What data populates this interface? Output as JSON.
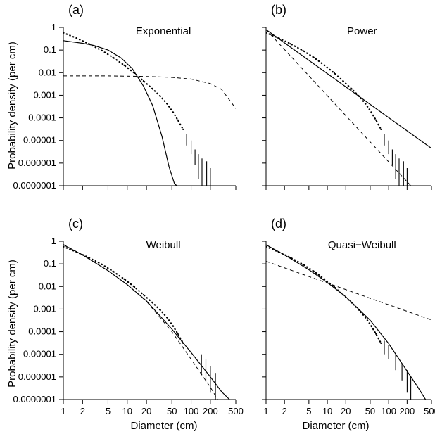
{
  "y_axis_label": "Probability density (per cm)",
  "x_axis_label": "Diameter (cm)",
  "chart_data": [
    {
      "type": "line",
      "panel": "(a)",
      "title": "Exponential",
      "xscale": "log",
      "yscale": "log",
      "xlim": [
        1,
        500
      ],
      "ylim": [
        1e-07,
        1
      ],
      "xticks": [
        1,
        2,
        5,
        10,
        20,
        50,
        100,
        200,
        500
      ],
      "xtick_labels": [
        "1",
        "2",
        "5",
        "10",
        "20",
        "50",
        "100",
        "200",
        "500"
      ],
      "yticks": [
        1e-07,
        1e-06,
        1e-05,
        0.0001,
        0.001,
        0.01,
        0.1,
        1
      ],
      "ytick_labels": [
        "0.0000001",
        "0.000001",
        "0.00001",
        "0.0001",
        "0.001",
        "0.01",
        "0.1",
        "1"
      ],
      "show_x_ticklabels": false,
      "show_y_ticklabels": true,
      "observed": {
        "x": [
          1,
          1.6,
          2.5,
          4,
          6,
          9,
          13,
          18,
          25,
          33,
          42,
          52,
          62,
          75
        ],
        "y": [
          0.58,
          0.34,
          0.19,
          0.095,
          0.047,
          0.021,
          0.0095,
          0.0043,
          0.0019,
          0.0009,
          0.00042,
          0.00018,
          8e-05,
          3.1e-05
        ]
      },
      "error_bars": [
        {
          "x": 85,
          "lo": 6e-06,
          "hi": 2e-05
        },
        {
          "x": 100,
          "lo": 2.5e-06,
          "hi": 1e-05
        },
        {
          "x": 115,
          "lo": 8e-07,
          "hi": 4e-06
        },
        {
          "x": 130,
          "lo": 2e-07,
          "hi": 2.5e-06
        },
        {
          "x": 148,
          "lo": 1e-07,
          "hi": 1.6e-06
        },
        {
          "x": 175,
          "lo": 1e-07,
          "hi": 1.2e-06
        },
        {
          "x": 200,
          "lo": 1e-07,
          "hi": 6e-07
        }
      ],
      "fit_solid": {
        "x": [
          1,
          2,
          3,
          5,
          8,
          12,
          18,
          25,
          35,
          45,
          55,
          60
        ],
        "y": [
          0.26,
          0.2,
          0.16,
          0.1,
          0.045,
          0.015,
          0.0025,
          0.00035,
          1.5e-05,
          7e-07,
          1.2e-07,
          1e-07
        ]
      },
      "fit_dashed": {
        "x": [
          1,
          5,
          20,
          50,
          100,
          200,
          300,
          500
        ],
        "y": [
          0.0072,
          0.0072,
          0.0068,
          0.0062,
          0.0052,
          0.0033,
          0.0018,
          0.00026
        ]
      }
    },
    {
      "type": "line",
      "panel": "(b)",
      "title": "Power",
      "xscale": "log",
      "yscale": "log",
      "xlim": [
        1,
        500
      ],
      "ylim": [
        1e-07,
        1
      ],
      "xticks": [
        1,
        2,
        5,
        10,
        20,
        50,
        100,
        200,
        500
      ],
      "xtick_labels": [
        "1",
        "2",
        "5",
        "10",
        "20",
        "50",
        "100",
        "200",
        "500"
      ],
      "yticks": [
        1e-07,
        1e-06,
        1e-05,
        0.0001,
        0.001,
        0.01,
        0.1,
        1
      ],
      "ytick_labels": [
        "0.0000001",
        "0.000001",
        "0.00001",
        "0.0001",
        "0.001",
        "0.01",
        "0.1",
        "1"
      ],
      "show_x_ticklabels": false,
      "show_y_ticklabels": false,
      "observed": {
        "x": [
          1,
          1.6,
          2.5,
          4,
          6,
          9,
          13,
          18,
          25,
          33,
          42,
          52,
          62,
          75
        ],
        "y": [
          0.58,
          0.34,
          0.19,
          0.095,
          0.047,
          0.021,
          0.0095,
          0.0043,
          0.0019,
          0.0009,
          0.00042,
          0.00018,
          8e-05,
          3.1e-05
        ]
      },
      "error_bars": [
        {
          "x": 85,
          "lo": 6e-06,
          "hi": 2e-05
        },
        {
          "x": 100,
          "lo": 2.5e-06,
          "hi": 1e-05
        },
        {
          "x": 115,
          "lo": 8e-07,
          "hi": 4e-06
        },
        {
          "x": 130,
          "lo": 2e-07,
          "hi": 2.5e-06
        },
        {
          "x": 148,
          "lo": 1e-07,
          "hi": 1.6e-06
        },
        {
          "x": 175,
          "lo": 1e-07,
          "hi": 1.2e-06
        },
        {
          "x": 200,
          "lo": 1e-07,
          "hi": 6e-07
        }
      ],
      "fit_solid": {
        "x": [
          1,
          500
        ],
        "y": [
          0.8,
          4.5e-06
        ]
      },
      "fit_dashed": {
        "x": [
          1,
          230
        ],
        "y": [
          0.8,
          1e-07
        ]
      }
    },
    {
      "type": "line",
      "panel": "(c)",
      "title": "Weibull",
      "xscale": "log",
      "yscale": "log",
      "xlim": [
        1,
        500
      ],
      "ylim": [
        1e-07,
        1
      ],
      "xticks": [
        1,
        2,
        5,
        10,
        20,
        50,
        100,
        200,
        500
      ],
      "xtick_labels": [
        "1",
        "2",
        "5",
        "10",
        "20",
        "50",
        "100",
        "200",
        "500"
      ],
      "yticks": [
        1e-07,
        1e-06,
        1e-05,
        0.0001,
        0.001,
        0.01,
        0.1,
        1
      ],
      "ytick_labels": [
        "0.0000001",
        "0.000001",
        "0.00001",
        "0.0001",
        "0.001",
        "0.01",
        "0.1",
        "1"
      ],
      "show_x_ticklabels": true,
      "show_y_ticklabels": true,
      "observed": {
        "x": [
          1,
          1.6,
          2.5,
          4,
          6,
          9,
          13,
          18,
          25,
          33,
          42,
          52,
          62,
          75
        ],
        "y": [
          0.58,
          0.34,
          0.19,
          0.095,
          0.047,
          0.021,
          0.0095,
          0.0043,
          0.0019,
          0.0009,
          0.00042,
          0.00018,
          8e-05,
          3.1e-05
        ]
      },
      "error_bars": [
        {
          "x": 145,
          "lo": 1.2e-06,
          "hi": 1e-05
        },
        {
          "x": 170,
          "lo": 6e-07,
          "hi": 6e-06
        },
        {
          "x": 200,
          "lo": 2e-07,
          "hi": 3e-06
        },
        {
          "x": 240,
          "lo": 1e-07,
          "hi": 1.5e-06
        }
      ],
      "fit_solid": {
        "x": [
          1,
          2,
          5,
          10,
          20,
          50,
          100,
          200,
          300,
          400
        ],
        "y": [
          0.7,
          0.25,
          0.05,
          0.012,
          0.0023,
          0.00013,
          1.2e-05,
          1e-06,
          2.2e-07,
          1e-07
        ]
      },
      "fit_dashed": {
        "x": [
          1,
          2,
          5,
          10,
          20,
          50,
          100,
          200,
          260
        ],
        "y": [
          0.72,
          0.25,
          0.05,
          0.012,
          0.0022,
          0.0001,
          6e-06,
          3.5e-07,
          1e-07
        ]
      }
    },
    {
      "type": "line",
      "panel": "(d)",
      "title": "Quasi−Weibull",
      "xscale": "log",
      "yscale": "log",
      "xlim": [
        1,
        500
      ],
      "ylim": [
        1e-07,
        1
      ],
      "xticks": [
        1,
        2,
        5,
        10,
        20,
        50,
        100,
        200,
        500
      ],
      "xtick_labels": [
        "1",
        "2",
        "5",
        "10",
        "20",
        "50",
        "100",
        "200",
        "500"
      ],
      "yticks": [
        1e-07,
        1e-06,
        1e-05,
        0.0001,
        0.001,
        0.01,
        0.1,
        1
      ],
      "ytick_labels": [
        "0.0000001",
        "0.000001",
        "0.00001",
        "0.0001",
        "0.001",
        "0.01",
        "0.1",
        "1"
      ],
      "show_x_ticklabels": true,
      "show_y_ticklabels": false,
      "observed": {
        "x": [
          1,
          1.6,
          2.5,
          4,
          6,
          9,
          13,
          18,
          25,
          33,
          42,
          52,
          62,
          75
        ],
        "y": [
          0.58,
          0.34,
          0.19,
          0.095,
          0.047,
          0.021,
          0.0095,
          0.0043,
          0.0019,
          0.0009,
          0.00042,
          0.00018,
          8e-05,
          3.1e-05
        ]
      },
      "error_bars": [
        {
          "x": 85,
          "lo": 1e-05,
          "hi": 4e-05
        },
        {
          "x": 100,
          "lo": 6e-06,
          "hi": 2.5e-05
        },
        {
          "x": 130,
          "lo": 2e-06,
          "hi": 1e-05
        },
        {
          "x": 165,
          "lo": 7e-07,
          "hi": 4e-06
        },
        {
          "x": 200,
          "lo": 2e-07,
          "hi": 2e-06
        },
        {
          "x": 230,
          "lo": 1e-07,
          "hi": 1e-06
        }
      ],
      "fit_solid": {
        "x": [
          1,
          2,
          5,
          10,
          20,
          50,
          100,
          200,
          300,
          400
        ],
        "y": [
          0.7,
          0.25,
          0.055,
          0.015,
          0.0035,
          0.00032,
          3e-05,
          1.8e-06,
          3.5e-07,
          1e-07
        ]
      },
      "fit_dashed": {
        "x": [
          1,
          500
        ],
        "y": [
          0.13,
          0.00033
        ]
      }
    }
  ]
}
